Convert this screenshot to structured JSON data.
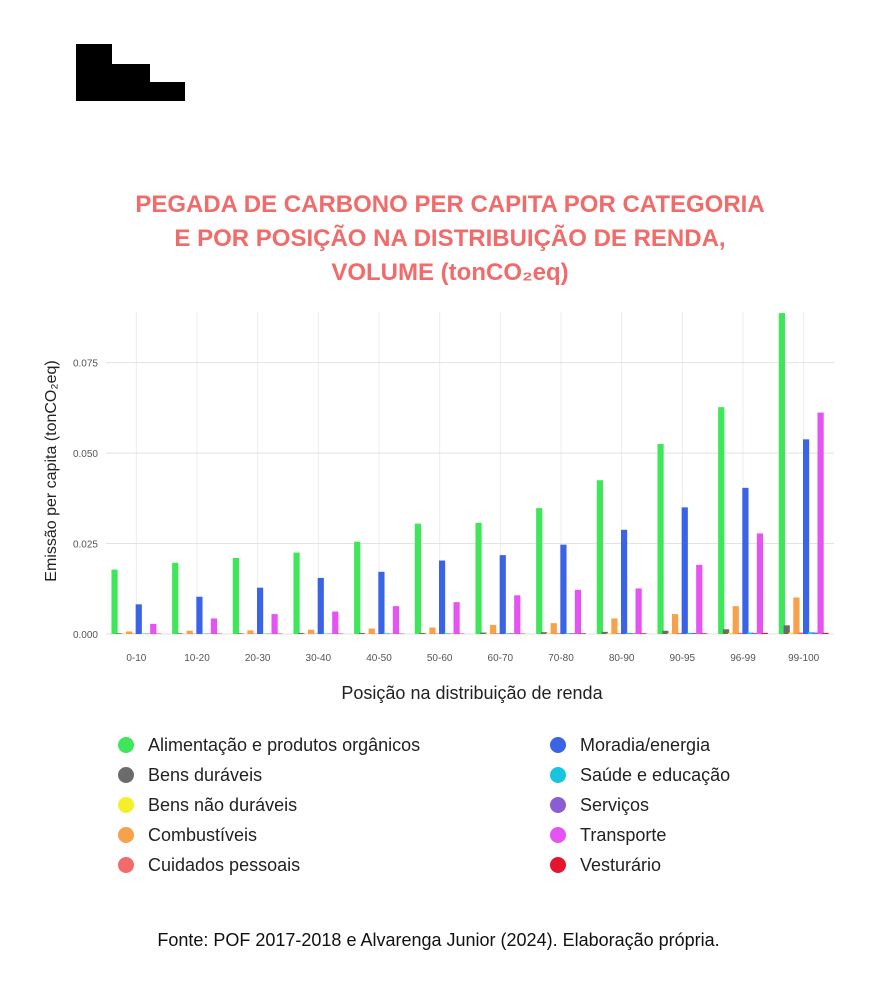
{
  "title_lines": [
    "PEGADA DE CARBONO PER CAPITA POR CATEGORIA",
    "E POR POSIÇÃO NA DISTRIBUIÇÃO DE RENDA,",
    "VOLUME (tonCO₂eq)"
  ],
  "source": "Fonte: POF 2017-2018 e Alvarenga Junior (2024). Elaboração própria.",
  "logo": {
    "color": "#000000"
  },
  "chart_data": {
    "type": "bar",
    "title": "PEGADA DE CARBONO PER CAPITA POR CATEGORIA E POR POSIÇÃO NA DISTRIBUIÇÃO DE RENDA, VOLUME (tonCO₂eq)",
    "xlabel": "Posição na distribuição de renda",
    "ylabel": "Emissão per capita (tonCO₂eq)",
    "ylim": [
      0,
      0.089
    ],
    "yticks": [
      "0.000",
      "0.025",
      "0.050",
      "0.075"
    ],
    "grid": true,
    "legend_position": "bottom",
    "categories": [
      "0-10",
      "10-20",
      "20-30",
      "30-40",
      "40-50",
      "50-60",
      "60-70",
      "70-80",
      "80-90",
      "90-95",
      "96-99",
      "99-100"
    ],
    "series": [
      {
        "name": "Alimentação e produtos orgânicos",
        "color": "#3ee65a",
        "values": [
          0.0178,
          0.0197,
          0.021,
          0.0225,
          0.0255,
          0.0305,
          0.0307,
          0.0348,
          0.0425,
          0.0525,
          0.0627,
          0.0887
        ]
      },
      {
        "name": "Bens duráveis",
        "color": "#6b6b6b",
        "values": [
          0.0002,
          0.0002,
          0.0002,
          0.0003,
          0.0003,
          0.0003,
          0.0004,
          0.0005,
          0.0006,
          0.0009,
          0.0013,
          0.0024
        ]
      },
      {
        "name": "Bens não duráveis",
        "color": "#f5ee2a",
        "values": [
          0.0001,
          0.0001,
          0.0001,
          0.0001,
          0.0001,
          0.0001,
          0.0001,
          0.0002,
          0.0002,
          0.0002,
          0.0003,
          0.0004
        ]
      },
      {
        "name": "Combustíveis",
        "color": "#f7a24b",
        "values": [
          0.0007,
          0.0009,
          0.001,
          0.0012,
          0.0015,
          0.0018,
          0.0025,
          0.003,
          0.0043,
          0.0055,
          0.0077,
          0.0101
        ]
      },
      {
        "name": "Cuidados pessoais",
        "color": "#f26b6b",
        "values": [
          0.0001,
          0.0001,
          0.0001,
          0.0001,
          0.0001,
          0.0001,
          0.0002,
          0.0002,
          0.0002,
          0.0003,
          0.0003,
          0.0004
        ]
      },
      {
        "name": "Moradia/energia",
        "color": "#3b63e6",
        "values": [
          0.0082,
          0.0103,
          0.0128,
          0.0155,
          0.0172,
          0.0203,
          0.0218,
          0.0247,
          0.0288,
          0.035,
          0.0404,
          0.0538
        ]
      },
      {
        "name": "Saúde e educação",
        "color": "#19c4e0",
        "values": [
          0.0001,
          0.0001,
          0.0001,
          0.0001,
          0.0002,
          0.0002,
          0.0002,
          0.0002,
          0.0003,
          0.0003,
          0.0004,
          0.0005
        ]
      },
      {
        "name": "Serviços",
        "color": "#8a5cd6",
        "values": [
          0.0001,
          0.0001,
          0.0001,
          0.0001,
          0.0001,
          0.0001,
          0.0002,
          0.0002,
          0.0002,
          0.0003,
          0.0003,
          0.0004
        ]
      },
      {
        "name": "Transporte",
        "color": "#e554f2",
        "values": [
          0.0028,
          0.0043,
          0.0055,
          0.0062,
          0.0077,
          0.0088,
          0.0107,
          0.0122,
          0.0126,
          0.0191,
          0.0278,
          0.0612
        ]
      },
      {
        "name": "Vesturário",
        "color": "#e3162e",
        "values": [
          0.0001,
          0.0001,
          0.0001,
          0.0001,
          0.0001,
          0.0001,
          0.0001,
          0.0002,
          0.0002,
          0.0002,
          0.0003,
          0.0003
        ]
      }
    ]
  }
}
